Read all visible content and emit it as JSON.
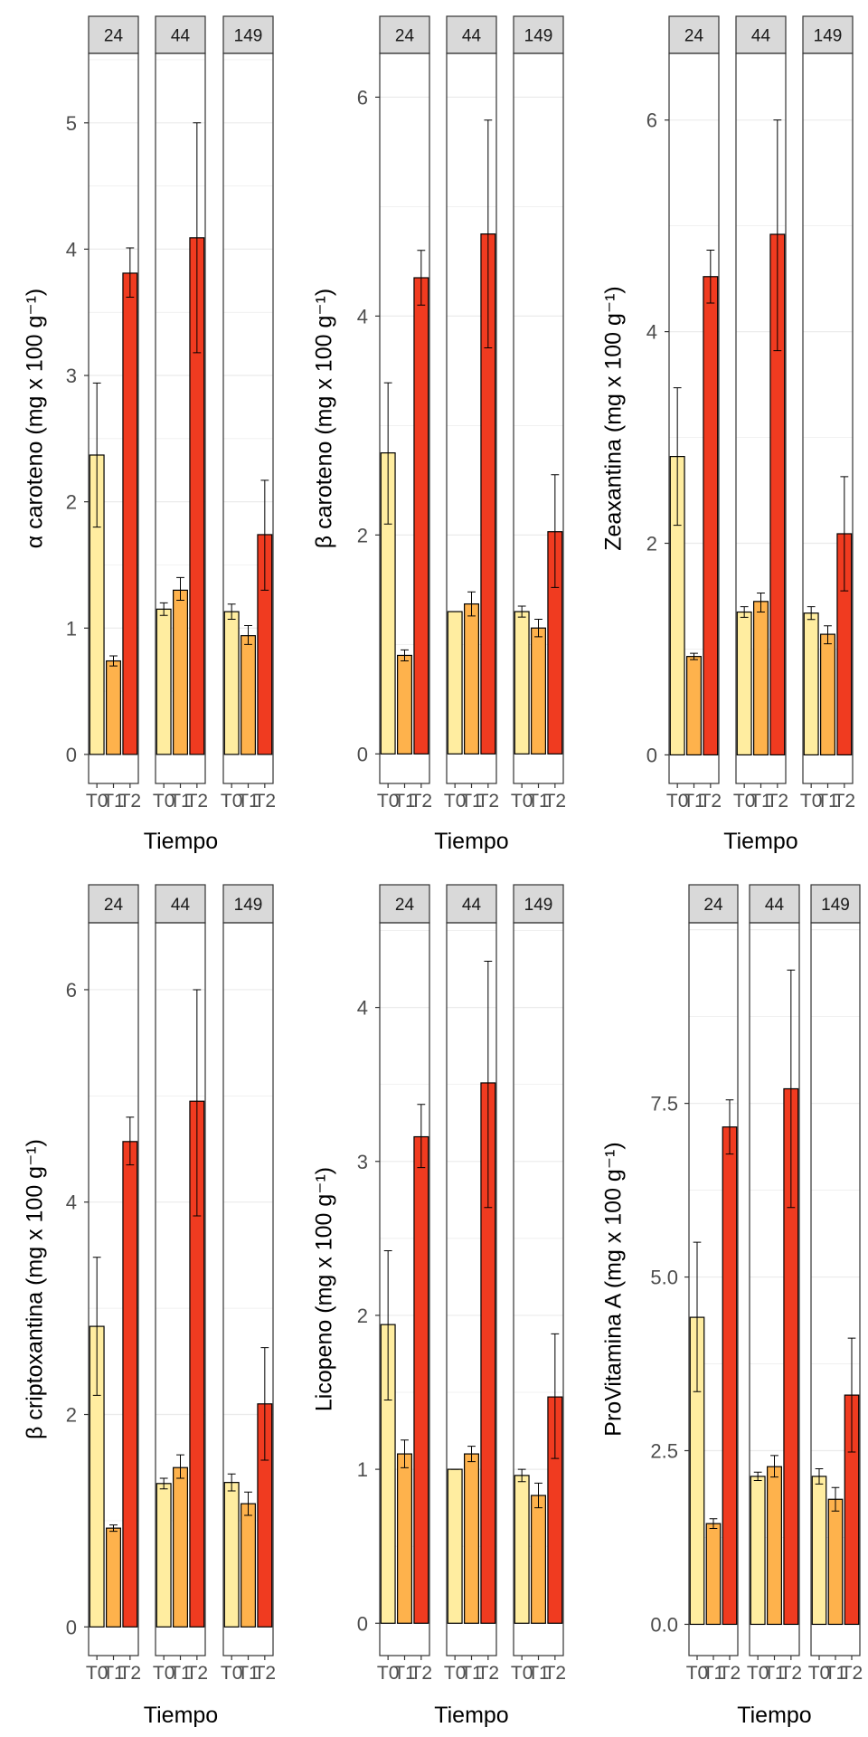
{
  "chart_data": [
    {
      "type": "bar",
      "ylabel": "α caroteno (mg x 100 g⁻¹)",
      "xlabel": "Tiempo",
      "ylim": [
        -0.23,
        5.55
      ],
      "yticks": [
        0,
        1,
        2,
        3,
        4,
        5
      ],
      "ytick_labels": [
        "0",
        "1",
        "2",
        "3",
        "4",
        "5"
      ],
      "facets": [
        {
          "label": "24",
          "categories": [
            "T0",
            "T1",
            "T2"
          ],
          "values": [
            2.37,
            0.74,
            3.81
          ],
          "err_low": [
            1.8,
            0.7,
            3.62
          ],
          "err_high": [
            2.94,
            0.78,
            4.01
          ]
        },
        {
          "label": "44",
          "categories": [
            "T0",
            "T1",
            "T2"
          ],
          "values": [
            1.15,
            1.3,
            4.09
          ],
          "err_low": [
            1.1,
            1.22,
            3.18
          ],
          "err_high": [
            1.2,
            1.4,
            5.0
          ]
        },
        {
          "label": "149",
          "categories": [
            "T0",
            "T1",
            "T2"
          ],
          "values": [
            1.13,
            0.94,
            1.74
          ],
          "err_low": [
            1.07,
            0.87,
            1.3
          ],
          "err_high": [
            1.19,
            1.02,
            2.17
          ]
        }
      ]
    },
    {
      "type": "bar",
      "ylabel": "β caroteno (mg x 100 g⁻¹)",
      "xlabel": "Tiempo",
      "ylim": [
        -0.27,
        6.4
      ],
      "yticks": [
        0,
        2,
        4,
        6
      ],
      "ytick_labels": [
        "0",
        "2",
        "4",
        "6"
      ],
      "facets": [
        {
          "label": "24",
          "categories": [
            "T0",
            "T1",
            "T2"
          ],
          "values": [
            2.75,
            0.9,
            4.35
          ],
          "err_low": [
            2.1,
            0.85,
            4.1
          ],
          "err_high": [
            3.39,
            0.95,
            4.6
          ]
        },
        {
          "label": "44",
          "categories": [
            "T0",
            "T1",
            "T2"
          ],
          "values": [
            1.3,
            1.37,
            4.75
          ],
          "err_low": [
            1.3,
            1.26,
            3.71
          ],
          "err_high": [
            1.3,
            1.48,
            5.79
          ]
        },
        {
          "label": "149",
          "categories": [
            "T0",
            "T1",
            "T2"
          ],
          "values": [
            1.3,
            1.15,
            2.03
          ],
          "err_low": [
            1.25,
            1.07,
            1.52
          ],
          "err_high": [
            1.35,
            1.23,
            2.55
          ]
        }
      ]
    },
    {
      "type": "bar",
      "ylabel": "Zeaxantina (mg x 100 g⁻¹)",
      "xlabel": "Tiempo",
      "ylim": [
        -0.27,
        6.63
      ],
      "yticks": [
        0,
        2,
        4,
        6
      ],
      "ytick_labels": [
        "0",
        "2",
        "4",
        "6"
      ],
      "facets": [
        {
          "label": "24",
          "categories": [
            "T0",
            "T1",
            "T2"
          ],
          "values": [
            2.82,
            0.93,
            4.52
          ],
          "err_low": [
            2.17,
            0.9,
            4.27
          ],
          "err_high": [
            3.47,
            0.96,
            4.77
          ]
        },
        {
          "label": "44",
          "categories": [
            "T0",
            "T1",
            "T2"
          ],
          "values": [
            1.35,
            1.45,
            4.92
          ],
          "err_low": [
            1.3,
            1.35,
            3.82
          ],
          "err_high": [
            1.4,
            1.53,
            6.0
          ]
        },
        {
          "label": "149",
          "categories": [
            "T0",
            "T1",
            "T2"
          ],
          "values": [
            1.34,
            1.14,
            2.09
          ],
          "err_low": [
            1.28,
            1.05,
            1.55
          ],
          "err_high": [
            1.4,
            1.22,
            2.63
          ]
        }
      ]
    },
    {
      "type": "bar",
      "ylabel": "β criptoxantina (mg x 100 g⁻¹)",
      "xlabel": "Tiempo",
      "ylim": [
        -0.27,
        6.63
      ],
      "yticks": [
        0,
        2,
        4,
        6
      ],
      "ytick_labels": [
        "0",
        "2",
        "4",
        "6"
      ],
      "facets": [
        {
          "label": "24",
          "categories": [
            "T0",
            "T1",
            "T2"
          ],
          "values": [
            2.83,
            0.93,
            4.57
          ],
          "err_low": [
            2.18,
            0.9,
            4.35
          ],
          "err_high": [
            3.48,
            0.96,
            4.8
          ]
        },
        {
          "label": "44",
          "categories": [
            "T0",
            "T1",
            "T2"
          ],
          "values": [
            1.35,
            1.5,
            4.95
          ],
          "err_low": [
            1.3,
            1.4,
            3.87
          ],
          "err_high": [
            1.4,
            1.62,
            6.0
          ]
        },
        {
          "label": "149",
          "categories": [
            "T0",
            "T1",
            "T2"
          ],
          "values": [
            1.36,
            1.16,
            2.1
          ],
          "err_low": [
            1.28,
            1.05,
            1.57
          ],
          "err_high": [
            1.44,
            1.27,
            2.63
          ]
        }
      ]
    },
    {
      "type": "bar",
      "ylabel": "Licopeno (mg x 100 g⁻¹)",
      "xlabel": "Tiempo",
      "ylim": [
        -0.21,
        4.55
      ],
      "yticks": [
        0,
        1,
        2,
        3,
        4
      ],
      "ytick_labels": [
        "0",
        "1",
        "2",
        "3",
        "4"
      ],
      "facets": [
        {
          "label": "24",
          "categories": [
            "T0",
            "T1",
            "T2"
          ],
          "values": [
            1.94,
            1.1,
            3.16
          ],
          "err_low": [
            1.45,
            1.01,
            2.96
          ],
          "err_high": [
            2.42,
            1.19,
            3.37
          ]
        },
        {
          "label": "44",
          "categories": [
            "T0",
            "T1",
            "T2"
          ],
          "values": [
            1.0,
            1.1,
            3.51
          ],
          "err_low": [
            1.0,
            1.05,
            2.7
          ],
          "err_high": [
            1.0,
            1.15,
            4.3
          ]
        },
        {
          "label": "149",
          "categories": [
            "T0",
            "T1",
            "T2"
          ],
          "values": [
            0.96,
            0.83,
            1.47
          ],
          "err_low": [
            0.92,
            0.75,
            1.07
          ],
          "err_high": [
            1.0,
            0.91,
            1.88
          ]
        }
      ]
    },
    {
      "type": "bar",
      "ylabel": "ProVitamina A (mg x 100 g⁻¹)",
      "xlabel": "Tiempo",
      "ylim": [
        -0.45,
        10.1
      ],
      "yticks": [
        0,
        2.5,
        5,
        7.5
      ],
      "ytick_labels": [
        "0.0",
        "2.5",
        "5.0",
        "7.5"
      ],
      "facets": [
        {
          "label": "24",
          "categories": [
            "T0",
            "T1",
            "T2"
          ],
          "values": [
            4.42,
            1.45,
            7.16
          ],
          "err_low": [
            3.35,
            1.38,
            6.77
          ],
          "err_high": [
            5.5,
            1.52,
            7.55
          ]
        },
        {
          "label": "44",
          "categories": [
            "T0",
            "T1",
            "T2"
          ],
          "values": [
            2.13,
            2.27,
            7.71
          ],
          "err_low": [
            2.07,
            2.12,
            6.0
          ],
          "err_high": [
            2.19,
            2.43,
            9.42
          ]
        },
        {
          "label": "149",
          "categories": [
            "T0",
            "T1",
            "T2"
          ],
          "values": [
            2.13,
            1.8,
            3.3
          ],
          "err_low": [
            2.02,
            1.63,
            2.48
          ],
          "err_high": [
            2.24,
            1.97,
            4.12
          ]
        }
      ]
    }
  ],
  "colors": {
    "bars": [
      "#FFEDA0",
      "#FEB24C",
      "#F03B20"
    ],
    "strip_bg": "#D9D9D9",
    "grid": "#EBEBEB",
    "panel_border": "#333333"
  }
}
